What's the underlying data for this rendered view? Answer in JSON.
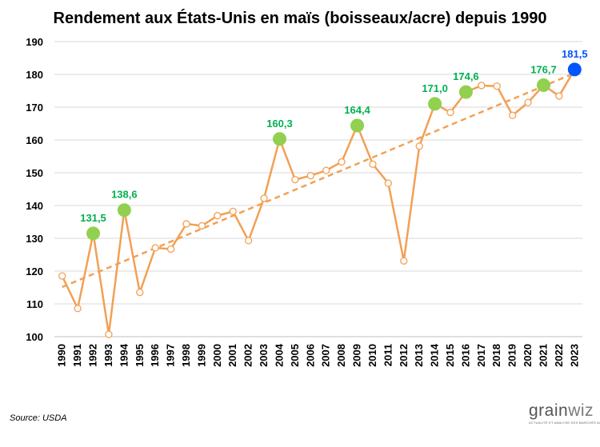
{
  "chart_data": {
    "type": "line",
    "title": "Rendement aux États-Unis en maïs (boisseaux/acre) depuis 1990",
    "x": [
      "1990",
      "1991",
      "1992",
      "1993",
      "1994",
      "1995",
      "1996",
      "1997",
      "1998",
      "1999",
      "2000",
      "2001",
      "2002",
      "2003",
      "2004",
      "2005",
      "2006",
      "2007",
      "2008",
      "2009",
      "2010",
      "2011",
      "2012",
      "2013",
      "2014",
      "2015",
      "2016",
      "2017",
      "2018",
      "2019",
      "2020",
      "2021",
      "2022",
      "2023"
    ],
    "series": [
      {
        "values": [
          118.5,
          108.6,
          131.5,
          100.7,
          138.6,
          113.5,
          127.1,
          126.7,
          134.4,
          133.8,
          136.9,
          138.2,
          129.3,
          142.2,
          160.3,
          147.9,
          149.1,
          150.7,
          153.3,
          164.4,
          152.6,
          146.8,
          123.1,
          158.1,
          171.0,
          168.4,
          174.6,
          176.6,
          176.4,
          167.5,
          171.4,
          176.7,
          173.4,
          181.5
        ],
        "color": "#f2a055",
        "marker_fill": "#ffffff"
      }
    ],
    "highlights": [
      {
        "x": "1992",
        "value": 131.5,
        "label": "131,5",
        "color": "#92d050",
        "label_color": "#00b050"
      },
      {
        "x": "1994",
        "value": 138.6,
        "label": "138,6",
        "color": "#92d050",
        "label_color": "#00b050"
      },
      {
        "x": "2004",
        "value": 160.3,
        "label": "160,3",
        "color": "#92d050",
        "label_color": "#00b050"
      },
      {
        "x": "2009",
        "value": 164.4,
        "label": "164,4",
        "color": "#92d050",
        "label_color": "#00b050"
      },
      {
        "x": "2014",
        "value": 171.0,
        "label": "171,0",
        "color": "#92d050",
        "label_color": "#00b050"
      },
      {
        "x": "2016",
        "value": 174.6,
        "label": "174,6",
        "color": "#92d050",
        "label_color": "#00b050"
      },
      {
        "x": "2021",
        "value": 176.7,
        "label": "176,7",
        "color": "#92d050",
        "label_color": "#00b050"
      },
      {
        "x": "2023",
        "value": 181.5,
        "label": "181,5",
        "color": "#0055ff",
        "label_color": "#0055ff"
      }
    ],
    "trendline": {
      "type": "linear",
      "style": "dashed",
      "color": "#f2a055"
    },
    "ylim": [
      100,
      190
    ],
    "yticks": [
      100,
      110,
      120,
      130,
      140,
      150,
      160,
      170,
      180,
      190
    ],
    "grid": true,
    "xlabel": "",
    "ylabel": ""
  },
  "source": "Source: USDA",
  "logo": {
    "text_main": "grain",
    "text_accent": "wiz",
    "tagline": "ACTUALITÉ ET ANALYSE DES MARCHÉS AGRICOLES"
  }
}
